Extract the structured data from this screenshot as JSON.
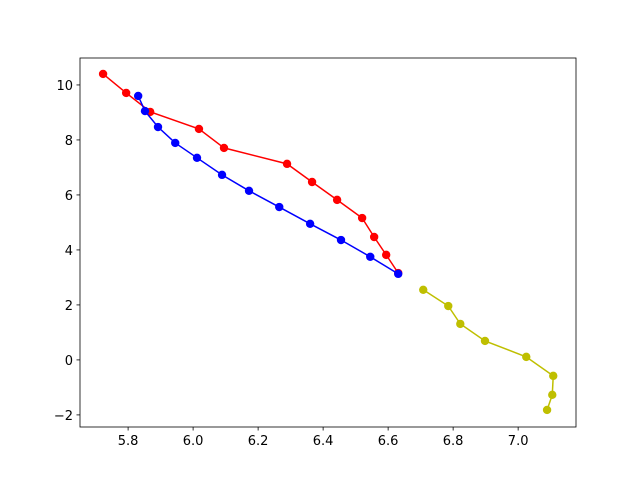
{
  "chart_data": {
    "type": "line",
    "xlim": [
      5.652,
      7.178
    ],
    "ylim": [
      -2.44,
      10.98
    ],
    "xticks": [
      {
        "value": 5.8,
        "label": "5.8"
      },
      {
        "value": 6.0,
        "label": "6.0"
      },
      {
        "value": 6.2,
        "label": "6.2"
      },
      {
        "value": 6.4,
        "label": "6.4"
      },
      {
        "value": 6.6,
        "label": "6.6"
      },
      {
        "value": 6.8,
        "label": "6.8"
      },
      {
        "value": 7.0,
        "label": "7.0"
      }
    ],
    "yticks": [
      {
        "value": -2,
        "label": "−2"
      },
      0,
      2,
      4,
      6,
      8,
      10
    ],
    "grid": false,
    "series": [
      {
        "color": "#ff0000",
        "x": [
          5.723,
          5.794,
          5.868,
          6.018,
          6.095,
          6.289,
          6.366,
          6.443,
          6.52,
          6.557,
          6.594,
          6.631
        ],
        "values": [
          10.4,
          9.71,
          9.02,
          8.4,
          7.71,
          7.13,
          6.47,
          5.82,
          5.16,
          4.47,
          3.82,
          3.16
        ]
      },
      {
        "color": "#0000ff",
        "x": [
          5.831,
          5.852,
          5.892,
          5.945,
          6.012,
          6.089,
          6.172,
          6.265,
          6.36,
          6.455,
          6.545,
          6.631
        ],
        "values": [
          9.6,
          9.05,
          8.47,
          7.89,
          7.35,
          6.73,
          6.15,
          5.56,
          4.95,
          4.36,
          3.75,
          3.13
        ]
      },
      {
        "color": "#bfbf00",
        "x": [
          6.708,
          6.785,
          6.822,
          6.898,
          7.025,
          7.108,
          7.105,
          7.089
        ],
        "values": [
          2.55,
          1.96,
          1.31,
          0.69,
          0.11,
          -0.58,
          -1.27,
          -1.82
        ]
      }
    ]
  }
}
